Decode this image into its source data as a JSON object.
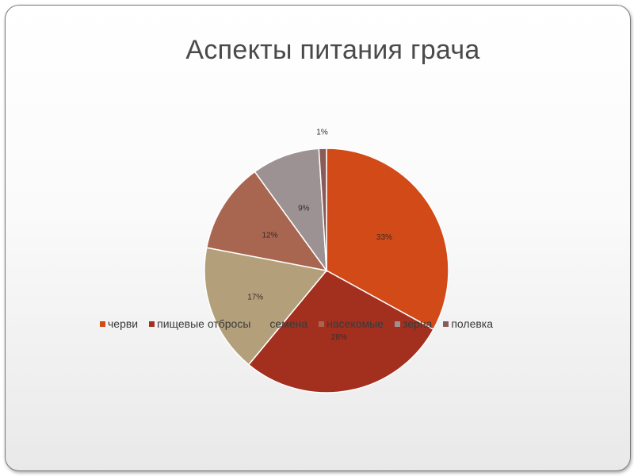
{
  "slide": {
    "title": "Аспекты питания грача"
  },
  "chart_data": {
    "type": "pie",
    "title": "Аспекты питания грача",
    "categories": [
      "черви",
      "пищевые отбросы",
      "семена",
      "насекомые",
      "зерна",
      "полевка"
    ],
    "values": [
      33,
      28,
      17,
      12,
      9,
      1
    ],
    "data_labels": [
      "33%",
      "28%",
      "17%",
      "12%",
      "9%",
      "1%"
    ],
    "colors": [
      "#d24a18",
      "#a3301f",
      "#b3a07a",
      "#a86650",
      "#9c9294",
      "#8a5c58"
    ],
    "legend_position": "bottom",
    "start": "12 o'clock, clockwise"
  }
}
